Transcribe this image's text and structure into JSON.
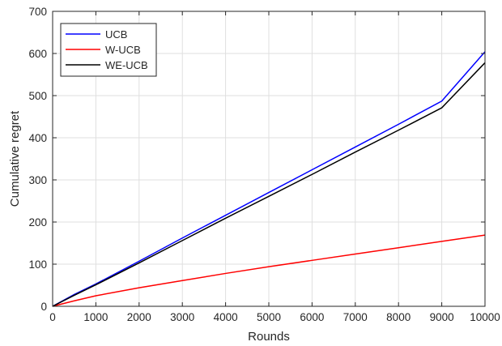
{
  "chart_data": {
    "type": "line",
    "title": "",
    "xlabel": "Rounds",
    "ylabel": "Cumulative regret",
    "xlim": [
      0,
      10000
    ],
    "ylim": [
      0,
      700
    ],
    "xticks": [
      0,
      1000,
      2000,
      3000,
      4000,
      5000,
      6000,
      7000,
      8000,
      9000,
      10000
    ],
    "yticks": [
      0,
      100,
      200,
      300,
      400,
      500,
      600,
      700
    ],
    "grid": true,
    "legend_position": "top-left",
    "series": [
      {
        "name": "UCB",
        "color": "#0000ff",
        "x": [
          0,
          500,
          1000,
          2000,
          3000,
          4000,
          5000,
          6000,
          7000,
          8000,
          9000,
          10000
        ],
        "y": [
          0,
          28,
          53,
          107,
          162,
          216,
          270,
          324,
          378,
          432,
          487,
          604
        ]
      },
      {
        "name": "W-UCB",
        "color": "#ff0000",
        "x": [
          0,
          500,
          1000,
          2000,
          3000,
          4000,
          5000,
          6000,
          7000,
          8000,
          9000,
          10000
        ],
        "y": [
          0,
          13,
          25,
          44,
          61,
          78,
          94,
          109,
          124,
          139,
          154,
          169
        ]
      },
      {
        "name": "WE-UCB",
        "color": "#000000",
        "x": [
          0,
          500,
          1000,
          2000,
          3000,
          4000,
          5000,
          6000,
          7000,
          8000,
          9000,
          10000
        ],
        "y": [
          0,
          26,
          51,
          103,
          156,
          209,
          261,
          313,
          366,
          418,
          471,
          578
        ]
      }
    ]
  }
}
